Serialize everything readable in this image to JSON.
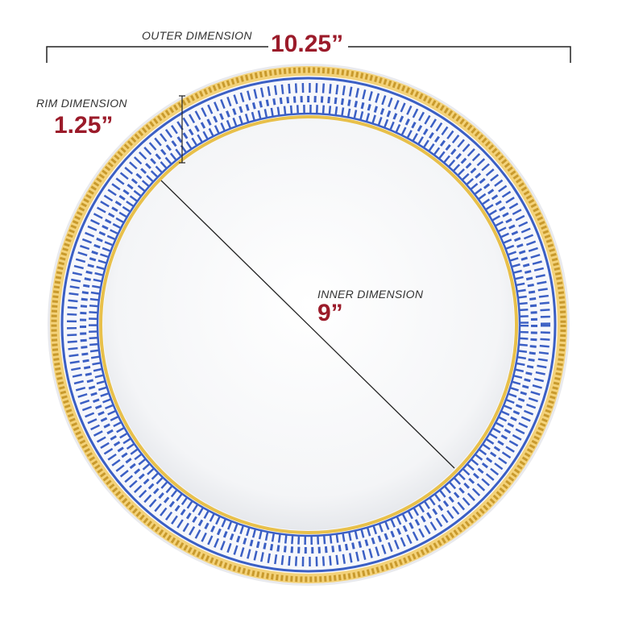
{
  "outer": {
    "label": "OUTER DIMENSION",
    "value": "10.25”"
  },
  "rim": {
    "label": "RIM DIMENSION",
    "value": "1.25”"
  },
  "inner": {
    "label": "INNER DIMENSION",
    "value": "9”"
  },
  "colors": {
    "value_text": "#9b1b2a",
    "label_text": "#333333",
    "pattern_blue": "#3b5fc4",
    "gold": "#e8c04a",
    "plate": "#ffffff"
  }
}
